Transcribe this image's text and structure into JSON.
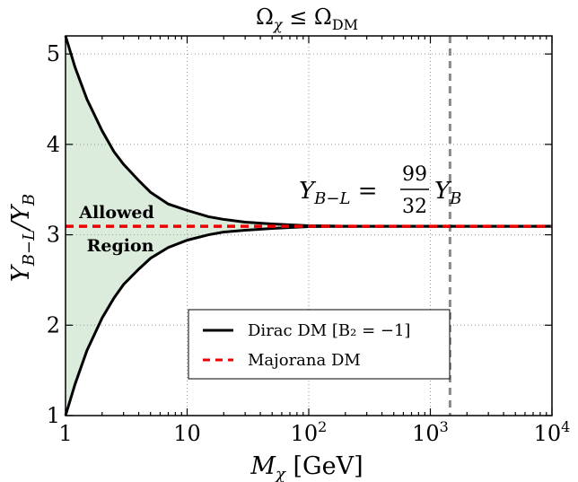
{
  "chart_data": {
    "type": "line",
    "title": {
      "main": "Ω",
      "sub1": "χ",
      "rel": " ≤ Ω",
      "sub2": "DM"
    },
    "xlabel": {
      "main": "M",
      "sub": "χ",
      "rest": " [GeV]"
    },
    "ylabel": {
      "num": "Y",
      "num_sub": "B−L",
      "slash": "/Y",
      "den_sub": "B"
    },
    "xscale": "log",
    "xlim": [
      1,
      10000
    ],
    "ylim": [
      1,
      5.2
    ],
    "grid": true,
    "x_ticks": [
      {
        "value": 1,
        "base": "1",
        "exp": ""
      },
      {
        "value": 10,
        "base": "10",
        "exp": ""
      },
      {
        "value": 100,
        "base": "10",
        "exp": "2"
      },
      {
        "value": 1000,
        "base": "10",
        "exp": "3"
      },
      {
        "value": 10000,
        "base": "10",
        "exp": "4"
      }
    ],
    "y_ticks": [
      {
        "value": 1,
        "label": "1"
      },
      {
        "value": 2,
        "label": "2"
      },
      {
        "value": 3,
        "label": "3"
      },
      {
        "value": 4,
        "label": "4"
      },
      {
        "value": 5,
        "label": "5"
      }
    ],
    "x": [
      1,
      1.2,
      1.5,
      2,
      2.5,
      3,
      4,
      5,
      7,
      10,
      15,
      20,
      30,
      50,
      70,
      100,
      150,
      200,
      300,
      500,
      1000,
      2000,
      5000,
      10000
    ],
    "series": [
      {
        "name": "Dirac DM [B₂ = −1]",
        "style": "solid",
        "color": "#000000",
        "values": [
          5.2,
          4.85,
          4.5,
          4.15,
          3.92,
          3.78,
          3.6,
          3.47,
          3.34,
          3.27,
          3.2,
          3.17,
          3.14,
          3.12,
          3.11,
          3.1,
          3.097,
          3.095,
          3.094,
          3.094,
          3.094,
          3.094,
          3.094,
          3.094
        ]
      },
      {
        "name": "",
        "style": "solid",
        "color": "#000000",
        "values": [
          1.0,
          1.35,
          1.72,
          2.08,
          2.3,
          2.45,
          2.62,
          2.74,
          2.86,
          2.94,
          3.0,
          3.03,
          3.05,
          3.07,
          3.08,
          3.09,
          3.092,
          3.093,
          3.094,
          3.094,
          3.094,
          3.094,
          3.094,
          3.094
        ]
      },
      {
        "name": "Majorana DM",
        "style": "dashed",
        "color": "#ee0000",
        "values": [
          3.094,
          3.094,
          3.094,
          3.094,
          3.094,
          3.094,
          3.094,
          3.094,
          3.094,
          3.094,
          3.094,
          3.094,
          3.094,
          3.094,
          3.094,
          3.094,
          3.094,
          3.094,
          3.094,
          3.094,
          3.094,
          3.094,
          3.094,
          3.094
        ]
      }
    ],
    "fill_color": "#dcecdc",
    "vline": {
      "x": 1450,
      "color": "#888888",
      "style": "dashed"
    },
    "annotations": {
      "allowed": "Allowed",
      "region": "Region",
      "eq_lhs": "Y",
      "eq_lhs_sub": "B−L",
      "eq_eq": " = ",
      "eq_num": "99",
      "eq_den": "32",
      "eq_rhs": "Y",
      "eq_rhs_sub": "B"
    },
    "legend": {
      "placement": "lower-center"
    }
  }
}
